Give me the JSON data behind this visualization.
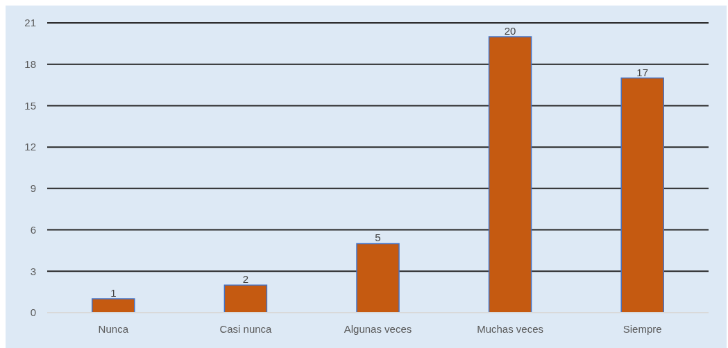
{
  "chart_data": {
    "type": "bar",
    "categories": [
      "Nunca",
      "Casi nunca",
      "Algunas veces",
      "Muchas veces",
      "Siempre"
    ],
    "values": [
      1,
      2,
      5,
      20,
      17
    ],
    "color": "#c55a11",
    "ylim": [
      0,
      21
    ],
    "yticks": [
      0,
      3,
      6,
      9,
      12,
      15,
      18,
      21
    ],
    "grid": "y",
    "data_labels": true
  }
}
